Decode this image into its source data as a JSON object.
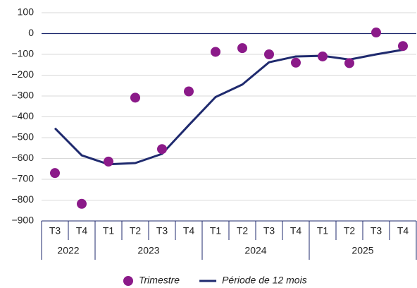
{
  "chart_data": {
    "type": "line",
    "groups": [
      {
        "year": "2022",
        "quarters": [
          "T3",
          "T4"
        ]
      },
      {
        "year": "2023",
        "quarters": [
          "T1",
          "T2",
          "T3",
          "T4"
        ]
      },
      {
        "year": "2024",
        "quarters": [
          "T1",
          "T2",
          "T3",
          "T4"
        ]
      },
      {
        "year": "2025",
        "quarters": [
          "T1",
          "T2",
          "T3",
          "T4"
        ]
      }
    ],
    "series": [
      {
        "name": "Trimestre",
        "style": "markers",
        "color": "#8b1a89",
        "values": [
          -670,
          -818,
          -615,
          -308,
          -555,
          -278,
          -88,
          -70,
          -100,
          -140,
          -110,
          -142,
          5,
          -60
        ]
      },
      {
        "name": "Période de 12 mois",
        "style": "line",
        "color": "#1f2a6e",
        "values": [
          -455,
          -585,
          -628,
          -622,
          -578,
          -440,
          -305,
          -245,
          -138,
          -110,
          -107,
          -125,
          -100,
          -78
        ]
      }
    ],
    "ylim": [
      -900,
      100
    ],
    "yticks": [
      {
        "value": -900,
        "label": "−900"
      },
      {
        "value": -800,
        "label": "−800"
      },
      {
        "value": -700,
        "label": "−700"
      },
      {
        "value": -600,
        "label": "−600"
      },
      {
        "value": -500,
        "label": "−500"
      },
      {
        "value": -400,
        "label": "−400"
      },
      {
        "value": -300,
        "label": "−300"
      },
      {
        "value": -200,
        "label": "−200"
      },
      {
        "value": -100,
        "label": "−100"
      },
      0,
      100
    ],
    "grid": true
  }
}
